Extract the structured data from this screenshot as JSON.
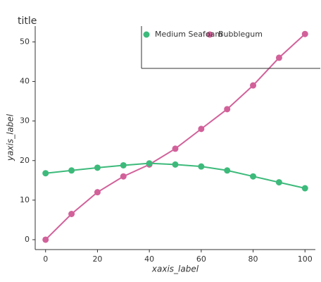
{
  "chart_data": {
    "type": "line",
    "title": "title",
    "xlabel": "xaxis_label",
    "ylabel": "yaxis_label",
    "x": [
      0,
      10,
      20,
      30,
      40,
      50,
      60,
      70,
      80,
      90,
      100
    ],
    "series": [
      {
        "name": "Bubblegum",
        "color": "#d2619a",
        "values": [
          0,
          6.5,
          12,
          16,
          19,
          23,
          28,
          33,
          39,
          46,
          52
        ]
      },
      {
        "name": "Medium Seafoam",
        "color": "#3dba7b",
        "values": [
          16.8,
          17.5,
          18.2,
          18.8,
          19.3,
          19,
          18.5,
          17.5,
          16,
          14.5,
          13
        ]
      }
    ],
    "xlim": [
      -4,
      104
    ],
    "ylim": [
      -2.5,
      54
    ],
    "xticks": [
      0,
      20,
      40,
      60,
      80,
      100
    ],
    "yticks": [
      0,
      10,
      20,
      30,
      40,
      50
    ],
    "legend": "upper right"
  }
}
